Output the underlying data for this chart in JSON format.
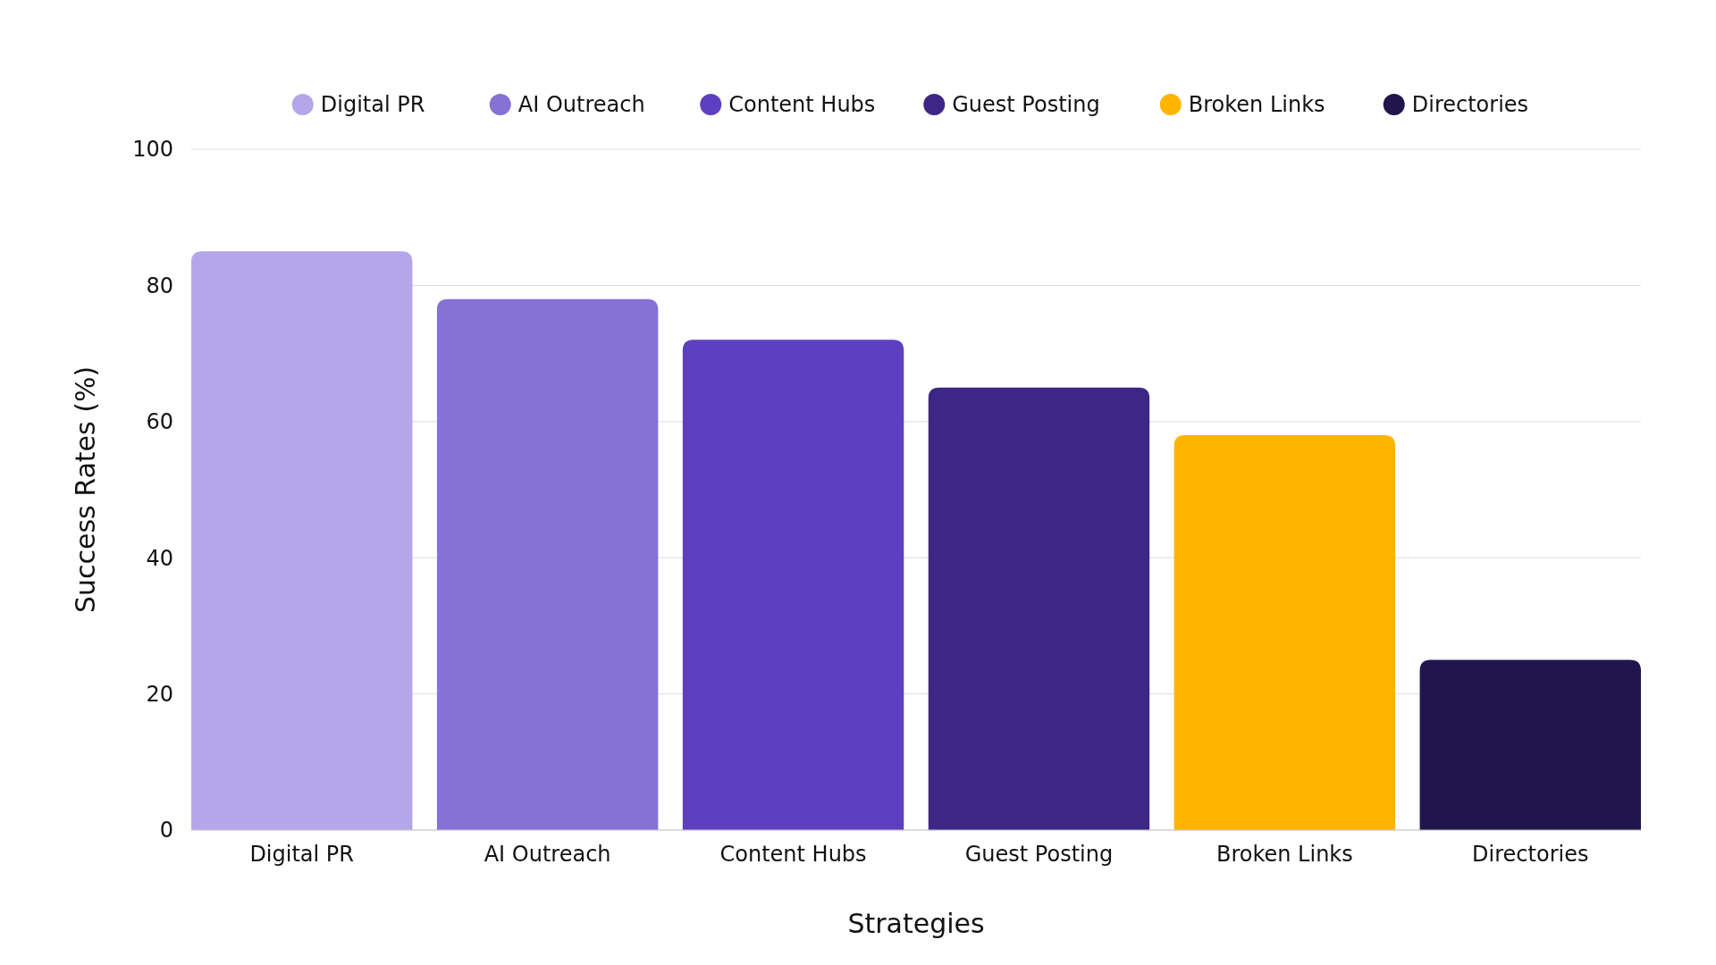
{
  "chart_data": {
    "type": "bar",
    "xlabel": "Strategies",
    "ylabel": "Success Rates (%)",
    "categories": [
      "Digital PR",
      "AI Outreach",
      "Content Hubs",
      "Guest Posting",
      "Broken Links",
      "Directories"
    ],
    "series": [
      {
        "name": "Digital PR",
        "color": "#b5a6ea",
        "values": [
          85,
          null,
          null,
          null,
          null,
          null
        ]
      },
      {
        "name": "AI Outreach",
        "color": "#8671d5",
        "values": [
          null,
          78,
          null,
          null,
          null,
          null
        ]
      },
      {
        "name": "Content Hubs",
        "color": "#5d40bf",
        "values": [
          null,
          null,
          72,
          null,
          null,
          null
        ]
      },
      {
        "name": "Guest Posting",
        "color": "#3d2785",
        "values": [
          null,
          null,
          null,
          65,
          null,
          null
        ]
      },
      {
        "name": "Broken Links",
        "color": "#ffb400",
        "values": [
          null,
          null,
          null,
          null,
          58,
          null
        ]
      },
      {
        "name": "Directories",
        "color": "#21154d",
        "values": [
          null,
          null,
          null,
          null,
          null,
          25
        ]
      }
    ],
    "ylim": [
      0,
      100
    ],
    "yticks": [
      0,
      20,
      40,
      60,
      80,
      100
    ],
    "grid": "y",
    "legend": "top"
  }
}
